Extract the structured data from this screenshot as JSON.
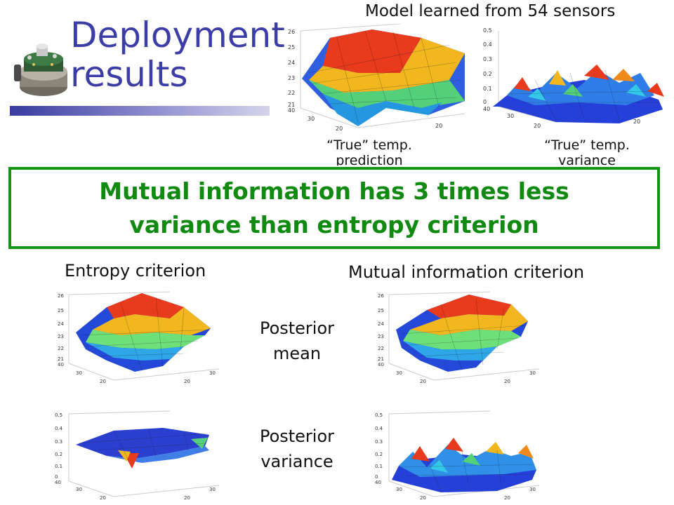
{
  "slide": {
    "title_line1": "Deployment",
    "title_line2": "results",
    "model_heading": "Model learned from 54 sensors",
    "true_pred_caption_line1": "“True” temp.",
    "true_pred_caption_line2": "prediction",
    "true_var_caption_line1": "“True” temp.",
    "true_var_caption_line2": "variance",
    "callout_line1": "Mutual information has 3 times less",
    "callout_line2": "variance than entropy criterion",
    "entropy_heading": "Entropy criterion",
    "mi_heading": "Mutual information criterion",
    "posterior_mean_line1": "Posterior",
    "posterior_mean_line2": "mean",
    "posterior_variance_line1": "Posterior",
    "posterior_variance_line2": "variance"
  },
  "axes": {
    "temp_ticks": [
      "26",
      "25",
      "24",
      "23",
      "22",
      "21",
      "40"
    ],
    "var_ticks": [
      "0.5",
      "0.4",
      "0.3",
      "0.2",
      "0.1",
      "0",
      "40"
    ],
    "depth_ticks": [
      "30",
      "20"
    ],
    "width_ticks": [
      "20",
      "30"
    ]
  },
  "colors": {
    "title": "#3d3da8",
    "callout_border": "#149614",
    "callout_text": "#108a10"
  }
}
